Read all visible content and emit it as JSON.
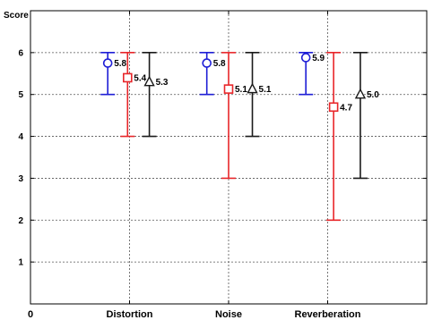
{
  "chart_data": {
    "type": "errorbar",
    "ylabel": "Score",
    "origin_label": "0",
    "categories": [
      "Distortion",
      "Noise",
      "Reverberation"
    ],
    "xlim": [
      0,
      4
    ],
    "ylim": [
      0,
      7
    ],
    "yticks": [
      "1",
      "2",
      "3",
      "4",
      "5",
      "6"
    ],
    "grid": true,
    "series": [
      {
        "marker": "circle",
        "color": "#1f1fd6",
        "points": [
          {
            "x": 0.78,
            "mean": 5.75,
            "low": 5.0,
            "high": 6.0,
            "label": "5.8"
          },
          {
            "x": 1.78,
            "mean": 5.75,
            "low": 5.0,
            "high": 6.0,
            "label": "5.8"
          },
          {
            "x": 2.78,
            "mean": 5.88,
            "low": 5.0,
            "high": 6.0,
            "label": "5.9"
          }
        ]
      },
      {
        "marker": "square",
        "color": "#e8262a",
        "points": [
          {
            "x": 0.98,
            "mean": 5.4,
            "low": 4.0,
            "high": 6.0,
            "label": "5.4"
          },
          {
            "x": 2.0,
            "mean": 5.13,
            "low": 3.0,
            "high": 6.0,
            "label": "5.1"
          },
          {
            "x": 3.06,
            "mean": 4.7,
            "low": 2.0,
            "high": 6.0,
            "label": "4.7"
          }
        ]
      },
      {
        "marker": "triangle",
        "color": "#1a1a1a",
        "points": [
          {
            "x": 1.2,
            "mean": 5.3,
            "low": 4.0,
            "high": 6.0,
            "label": "5.3"
          },
          {
            "x": 2.24,
            "mean": 5.13,
            "low": 4.0,
            "high": 6.0,
            "label": "5.1"
          },
          {
            "x": 3.33,
            "mean": 5.0,
            "low": 3.0,
            "high": 6.0,
            "label": "5.0"
          }
        ]
      }
    ]
  }
}
